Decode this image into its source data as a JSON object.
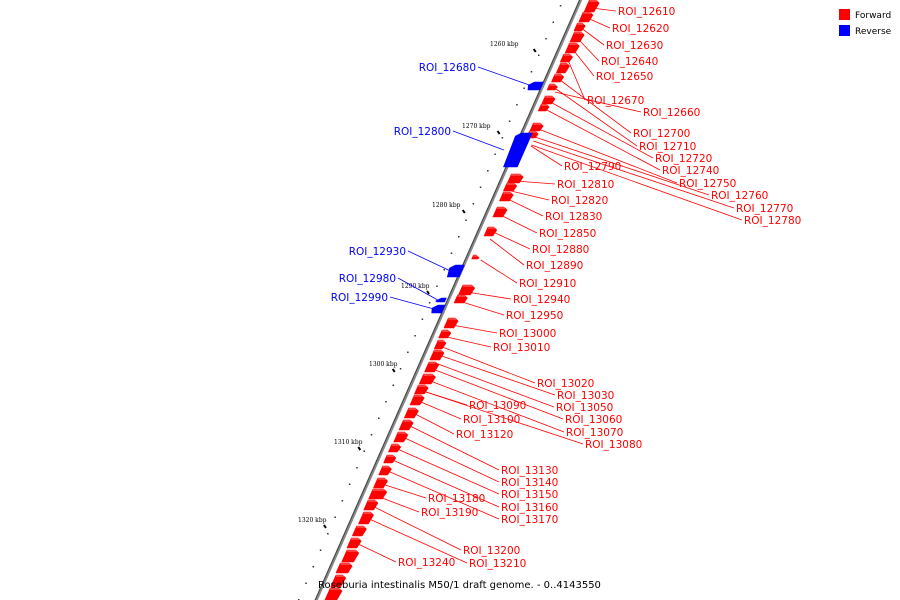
{
  "caption": "Roseburia intestinalis M50/1 draft genome. - 0..4143550",
  "legend": [
    {
      "label": "Forward",
      "color": "#ff0000"
    },
    {
      "label": "Reverse",
      "color": "#0000ff"
    }
  ],
  "tick_labels": [
    "1260 kbp",
    "1270 kbp",
    "1280 kbp",
    "1290 kbp",
    "1300 kbp",
    "1310 kbp",
    "1320 kbp"
  ],
  "forward_color": "#ff0000",
  "reverse_color": "#0000ff",
  "reverse_features": [
    {
      "label": "ROI_12680"
    },
    {
      "label": "ROI_12800"
    },
    {
      "label": "ROI_12930"
    },
    {
      "label": "ROI_12980"
    },
    {
      "label": "ROI_12990"
    }
  ],
  "forward_labels": [
    "ROI_12610",
    "ROI_12620",
    "ROI_12630",
    "ROI_12640",
    "ROI_12650",
    "ROI_12670",
    "ROI_12660",
    "ROI_12700",
    "ROI_12710",
    "ROI_12720",
    "ROI_12740",
    "ROI_12750",
    "ROI_12760",
    "ROI_12770",
    "ROI_12780",
    "ROI_12790",
    "ROI_12810",
    "ROI_12820",
    "ROI_12830",
    "ROI_12850",
    "ROI_12880",
    "ROI_12890",
    "ROI_12910",
    "ROI_12940",
    "ROI_12950",
    "ROI_13000",
    "ROI_13010",
    "ROI_13020",
    "ROI_13030",
    "ROI_13050",
    "ROI_13060",
    "ROI_13070",
    "ROI_13080",
    "ROI_13090",
    "ROI_13100",
    "ROI_13120",
    "ROI_13130",
    "ROI_13140",
    "ROI_13150",
    "ROI_13160",
    "ROI_13170",
    "ROI_13180",
    "ROI_13190",
    "ROI_13200",
    "ROI_13210",
    "ROI_13240"
  ]
}
